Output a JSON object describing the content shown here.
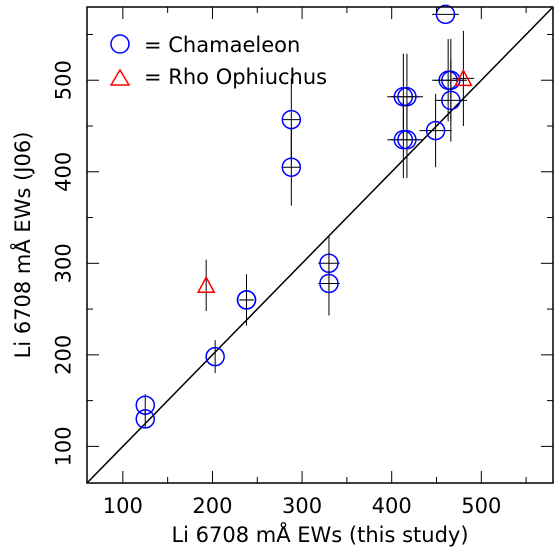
{
  "chart_data": {
    "type": "scatter",
    "xlabel": "Li 6708 mÅ EWs (this study)",
    "ylabel": "Li 6708 mÅ EWs (J06)",
    "xlim": [
      60,
      580
    ],
    "ylim": [
      60,
      580
    ],
    "x_ticks": [
      100,
      200,
      300,
      400,
      500
    ],
    "y_ticks": [
      100,
      200,
      300,
      400,
      500
    ],
    "grid": false,
    "legend_position": "top-left",
    "reference_line": "y = x",
    "series": [
      {
        "name": "Chamaeleon",
        "marker": "circle",
        "color": "#0000ff",
        "points": [
          {
            "x": 125,
            "y": 145,
            "xerr": 0,
            "yerr": 12
          },
          {
            "x": 125,
            "y": 130,
            "xerr": 0,
            "yerr": 10
          },
          {
            "x": 203,
            "y": 198,
            "xerr": 0,
            "yerr": 18
          },
          {
            "x": 238,
            "y": 260,
            "xerr": 8,
            "yerr": 28
          },
          {
            "x": 238,
            "y": 260,
            "xerr": 8,
            "yerr": 28
          },
          {
            "x": 288,
            "y": 457,
            "xerr": 10,
            "yerr": 45
          },
          {
            "x": 288,
            "y": 405,
            "xerr": 10,
            "yerr": 42
          },
          {
            "x": 330,
            "y": 300,
            "xerr": 12,
            "yerr": 30
          },
          {
            "x": 330,
            "y": 278,
            "xerr": 12,
            "yerr": 35
          },
          {
            "x": 413,
            "y": 482,
            "xerr": 18,
            "yerr": 47
          },
          {
            "x": 417,
            "y": 482,
            "xerr": 18,
            "yerr": 47
          },
          {
            "x": 413,
            "y": 435,
            "xerr": 18,
            "yerr": 42
          },
          {
            "x": 417,
            "y": 435,
            "xerr": 18,
            "yerr": 42
          },
          {
            "x": 449,
            "y": 445,
            "xerr": 18,
            "yerr": 40
          },
          {
            "x": 460,
            "y": 572,
            "xerr": 15,
            "yerr": 0
          },
          {
            "x": 463,
            "y": 500,
            "xerr": 18,
            "yerr": 45
          },
          {
            "x": 466,
            "y": 500,
            "xerr": 18,
            "yerr": 45
          },
          {
            "x": 466,
            "y": 478,
            "xerr": 18,
            "yerr": 45
          }
        ]
      },
      {
        "name": "Rho Ophiuchus",
        "marker": "triangle",
        "color": "#ff0000",
        "points": [
          {
            "x": 193,
            "y": 276,
            "xerr": 0,
            "yerr": 28
          },
          {
            "x": 480,
            "y": 502,
            "xerr": 12,
            "yerr": 52
          }
        ]
      }
    ],
    "legend": [
      {
        "symbol": "○",
        "label": "= Chamaeleon",
        "color": "#0000ff"
      },
      {
        "symbol": "△",
        "label": "= Rho Ophiuchus",
        "color": "#ff0000"
      }
    ]
  }
}
